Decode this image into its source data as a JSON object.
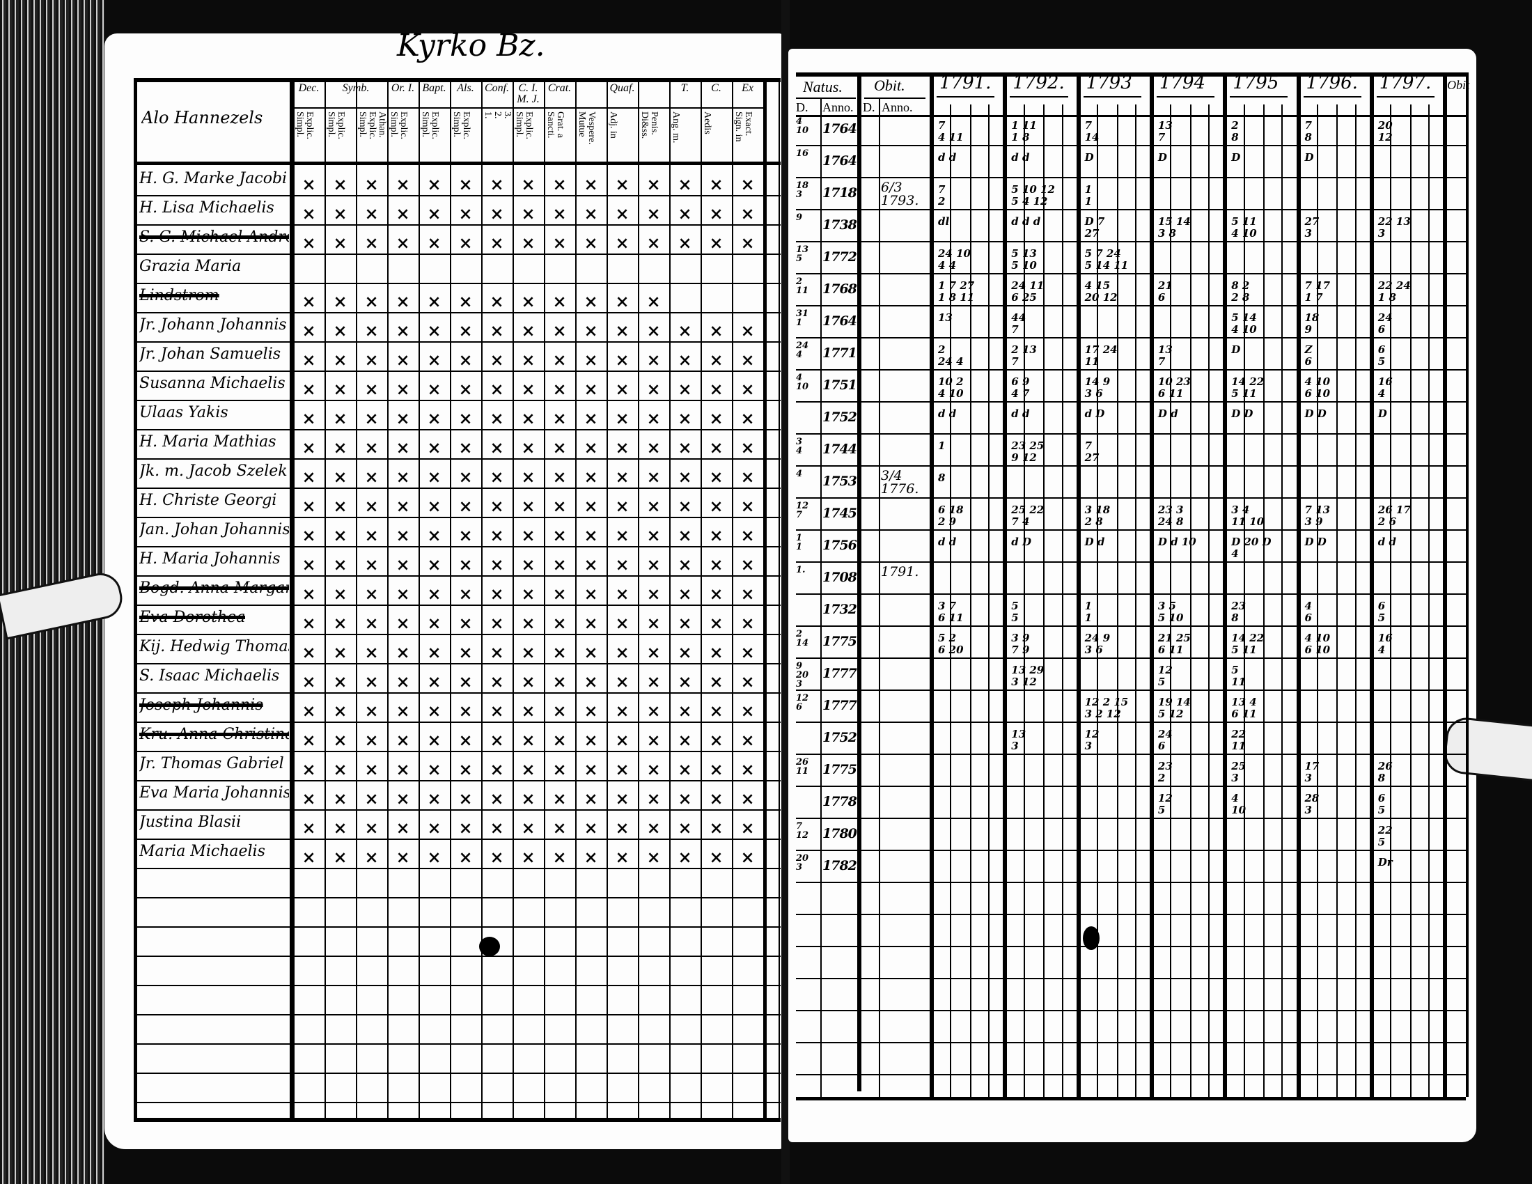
{
  "left_page": {
    "title": "Kyrko Bz.",
    "name_header": "Alo Hannezels",
    "check_mark": "×",
    "column_groups": [
      {
        "label": "Dec.",
        "span": 1
      },
      {
        "label": "Symb.",
        "span": 2
      },
      {
        "label": "Or. I.",
        "span": 1
      },
      {
        "label": "Bapt.",
        "span": 1
      },
      {
        "label": "Als.",
        "span": 1
      },
      {
        "label": "Conf.",
        "span": 1
      },
      {
        "label": "C. I. M. J.",
        "span": 1
      },
      {
        "label": "Crat.",
        "span": 1
      },
      {
        "label": "Quaf.",
        "span": 3
      },
      {
        "label": "T.",
        "span": 1
      },
      {
        "label": "C.",
        "span": 1
      },
      {
        "label": "Ex",
        "span": 1
      }
    ],
    "sub_columns": [
      "Explic.\nSimpl.",
      "Explic.\nSimpl.",
      "Athan.\nExplic.\nSimpl.",
      "Explic.\nSimpl.",
      "Explic.\nSimpl.",
      "Explic.\nSimpl.",
      "3.\n2.\n1.",
      "Explic.\nSimpl.",
      "Grat. a\nSancti.",
      "Vespere.\nMutue",
      "Adj. in",
      "Penis.\nDi&ss.",
      "Ang. m.",
      "Aedis",
      "Exact.\nSign. in"
    ]
  },
  "right_page": {
    "natus_header": "Natus.",
    "obit_header": "Obit.",
    "day_label": "D.",
    "anno_label": "Anno.",
    "years": [
      "1791.",
      "1792.",
      "1793",
      "1794",
      "1795",
      "1796.",
      "1797."
    ],
    "last_header": "Obit"
  },
  "rows": [
    {
      "name": "H. G. Marke Jacobi",
      "checks": 15,
      "natus_d": "4\n10",
      "natus_y": "1764.",
      "obit": "",
      "cells": [
        "7\n4 11",
        "1 11\n1 8",
        "7\n14",
        "13\n7",
        "2\n8",
        "7\n8",
        "20\n12"
      ]
    },
    {
      "name": "H. Lisa Michaelis",
      "checks": 15,
      "natus_d": "16",
      "natus_y": "1764.",
      "obit": "",
      "cells": [
        "d d",
        "d d",
        "D",
        "D",
        "D",
        "D",
        ""
      ]
    },
    {
      "name": "S. G. Michael Andreas",
      "checks": 15,
      "strike": true,
      "natus_d": "18\n3",
      "natus_y": "1718.",
      "obit": "6/3 1793.",
      "cells": [
        "7\n2",
        "5 10 12\n5 4 12",
        "1\n1",
        "",
        "",
        "",
        ""
      ]
    },
    {
      "name": "Grazia Maria",
      "checks": 0,
      "natus_d": "9",
      "natus_y": "1738.",
      "obit": "",
      "cells": [
        "dl",
        "d d d",
        "D 7\n27",
        "15 14\n3 8",
        "5 11\n4 10",
        "27\n3",
        "22 13\n3"
      ]
    },
    {
      "name": "Lindstrom",
      "checks": 12,
      "strike": true,
      "natus_d": "13\n5",
      "natus_y": "1772.",
      "obit": "",
      "cells": [
        "24 10\n4 4",
        "5 13\n5 10",
        "5 7 24\n5 14 11",
        "",
        "",
        "",
        ""
      ]
    },
    {
      "name": "Jr. Johann Johannis",
      "checks": 15,
      "natus_d": "2\n11",
      "natus_y": "1768.",
      "obit": "",
      "cells": [
        "1 7 27\n1 8 11",
        "24 11\n6 25",
        "4 15\n20 12",
        "21\n6",
        "8 2\n2 8",
        "7 17\n1 7",
        "22 24\n1 8"
      ]
    },
    {
      "name": "Jr. Johan Samuelis",
      "checks": 15,
      "natus_d": "31\n1",
      "natus_y": "1764.",
      "obit": "",
      "cells": [
        "13",
        "44\n7",
        "",
        "",
        "5 14\n4 10",
        "18\n9",
        "24\n6"
      ]
    },
    {
      "name": "Susanna Michaelis",
      "checks": 15,
      "natus_d": "24\n4",
      "natus_y": "1771.",
      "obit": "",
      "cells": [
        "2\n24 4",
        "2 13\n7",
        "17 24\n11",
        "13\n7",
        "D",
        "Z\n6",
        "6\n5"
      ]
    },
    {
      "name": "Ulaas Yakis",
      "checks": 15,
      "natus_d": "4\n10",
      "natus_y": "1751.",
      "obit": "",
      "cells": [
        "10 2\n4 10",
        "6 9\n4 7",
        "14 9\n3 6",
        "10 23\n6 11",
        "14 22\n5 11",
        "4 10\n6 10",
        "16\n4"
      ]
    },
    {
      "name": "H. Maria Mathias",
      "checks": 15,
      "natus_d": "",
      "natus_y": "1752.",
      "obit": "",
      "cells": [
        "d d",
        "d d",
        "d D",
        "D d",
        "D D",
        "D D",
        "D"
      ]
    },
    {
      "name": "Jk. m. Jacob Szelek",
      "checks": 15,
      "natus_d": "3\n4",
      "natus_y": "1744.",
      "obit": "",
      "cells": [
        "1",
        "23 25\n9 12",
        "7\n27",
        "",
        "",
        "",
        ""
      ]
    },
    {
      "name": "H. Christe Georgi",
      "checks": 15,
      "natus_d": "4",
      "natus_y": "1753.",
      "obit": "3/4 1776.",
      "cells": [
        "8",
        "",
        "",
        "",
        "",
        "",
        ""
      ]
    },
    {
      "name": "Jan. Johan Johannis",
      "checks": 15,
      "natus_d": "12\n7",
      "natus_y": "1745.",
      "obit": "",
      "cells": [
        "6 18\n2 9",
        "25 22\n7 4",
        "3 18\n2 8",
        "23 3\n24 8",
        "3 4\n11 10",
        "7 13\n3 9",
        "26 17\n2 6"
      ]
    },
    {
      "name": "H. Maria Johannis",
      "checks": 15,
      "natus_d": "1\n1",
      "natus_y": "1756.",
      "obit": "",
      "cells": [
        "d d",
        "d D",
        "D d",
        "D d 10",
        "D 20 D\n4",
        "D D",
        "d d"
      ]
    },
    {
      "name": "Bogd. Anna Margaretha",
      "checks": 15,
      "strike": true,
      "natus_d": "1.",
      "natus_y": "1708.",
      "obit": "1791.",
      "cells": [
        "",
        "",
        "",
        "",
        "",
        "",
        ""
      ]
    },
    {
      "name": "Eva Dorothea",
      "checks": 15,
      "strike": true,
      "natus_d": "",
      "natus_y": "1732.",
      "obit": "",
      "cells": [
        "3 7\n6 11",
        "5\n5",
        "1\n1",
        "3 5\n5 10",
        "23\n8",
        "4\n6",
        "6\n5"
      ]
    },
    {
      "name": "Kij. Hedwig Thomas",
      "checks": 15,
      "natus_d": "2\n14",
      "natus_y": "1775.",
      "obit": "",
      "cells": [
        "5 2\n6 20",
        "3 9\n7 9",
        "24 9\n3 6",
        "21 25\n6 11",
        "14 22\n5 11",
        "4 10\n6 10",
        "16\n4"
      ]
    },
    {
      "name": "S. Isaac Michaelis",
      "checks": 15,
      "natus_d": "9\n20\n3",
      "natus_y": "1777.",
      "obit": "",
      "cells": [
        "",
        "13 29\n3 12",
        "",
        "12\n5",
        "5\n11",
        "",
        ""
      ]
    },
    {
      "name": "Joseph Johannis",
      "checks": 15,
      "strike": true,
      "natus_d": "12\n6",
      "natus_y": "1777.",
      "obit": "",
      "cells": [
        "",
        "",
        "12 2 15\n3 2 12",
        "19 14\n5 12",
        "13 4\n6 11",
        "",
        ""
      ]
    },
    {
      "name": "Kru. Anna Christina",
      "checks": 15,
      "strike": true,
      "natus_d": "",
      "natus_y": "1752.",
      "obit": "",
      "cells": [
        "",
        "13\n3",
        "12\n3",
        "24\n6",
        "22\n11",
        "",
        ""
      ]
    },
    {
      "name": "Jr. Thomas Gabriel",
      "checks": 15,
      "natus_d": "26\n11",
      "natus_y": "1775.",
      "obit": "",
      "cells": [
        "",
        "",
        "",
        "23\n2",
        "25\n3",
        "17\n3",
        "26\n8"
      ]
    },
    {
      "name": "Eva Maria Johannis",
      "checks": 15,
      "natus_d": "",
      "natus_y": "1778.",
      "obit": "",
      "cells": [
        "",
        "",
        "",
        "12\n5",
        "4\n10",
        "28\n3",
        "6\n5"
      ]
    },
    {
      "name": "Justina Blasii",
      "checks": 15,
      "natus_d": "7\n12",
      "natus_y": "1780.",
      "obit": "",
      "cells": [
        "",
        "",
        "",
        "",
        "",
        "",
        "22\n5"
      ]
    },
    {
      "name": "Maria Michaelis",
      "checks": 15,
      "natus_d": "20\n3",
      "natus_y": "1782.",
      "obit": "",
      "cells": [
        "",
        "",
        "",
        "",
        "",
        "",
        "Dr"
      ]
    }
  ]
}
